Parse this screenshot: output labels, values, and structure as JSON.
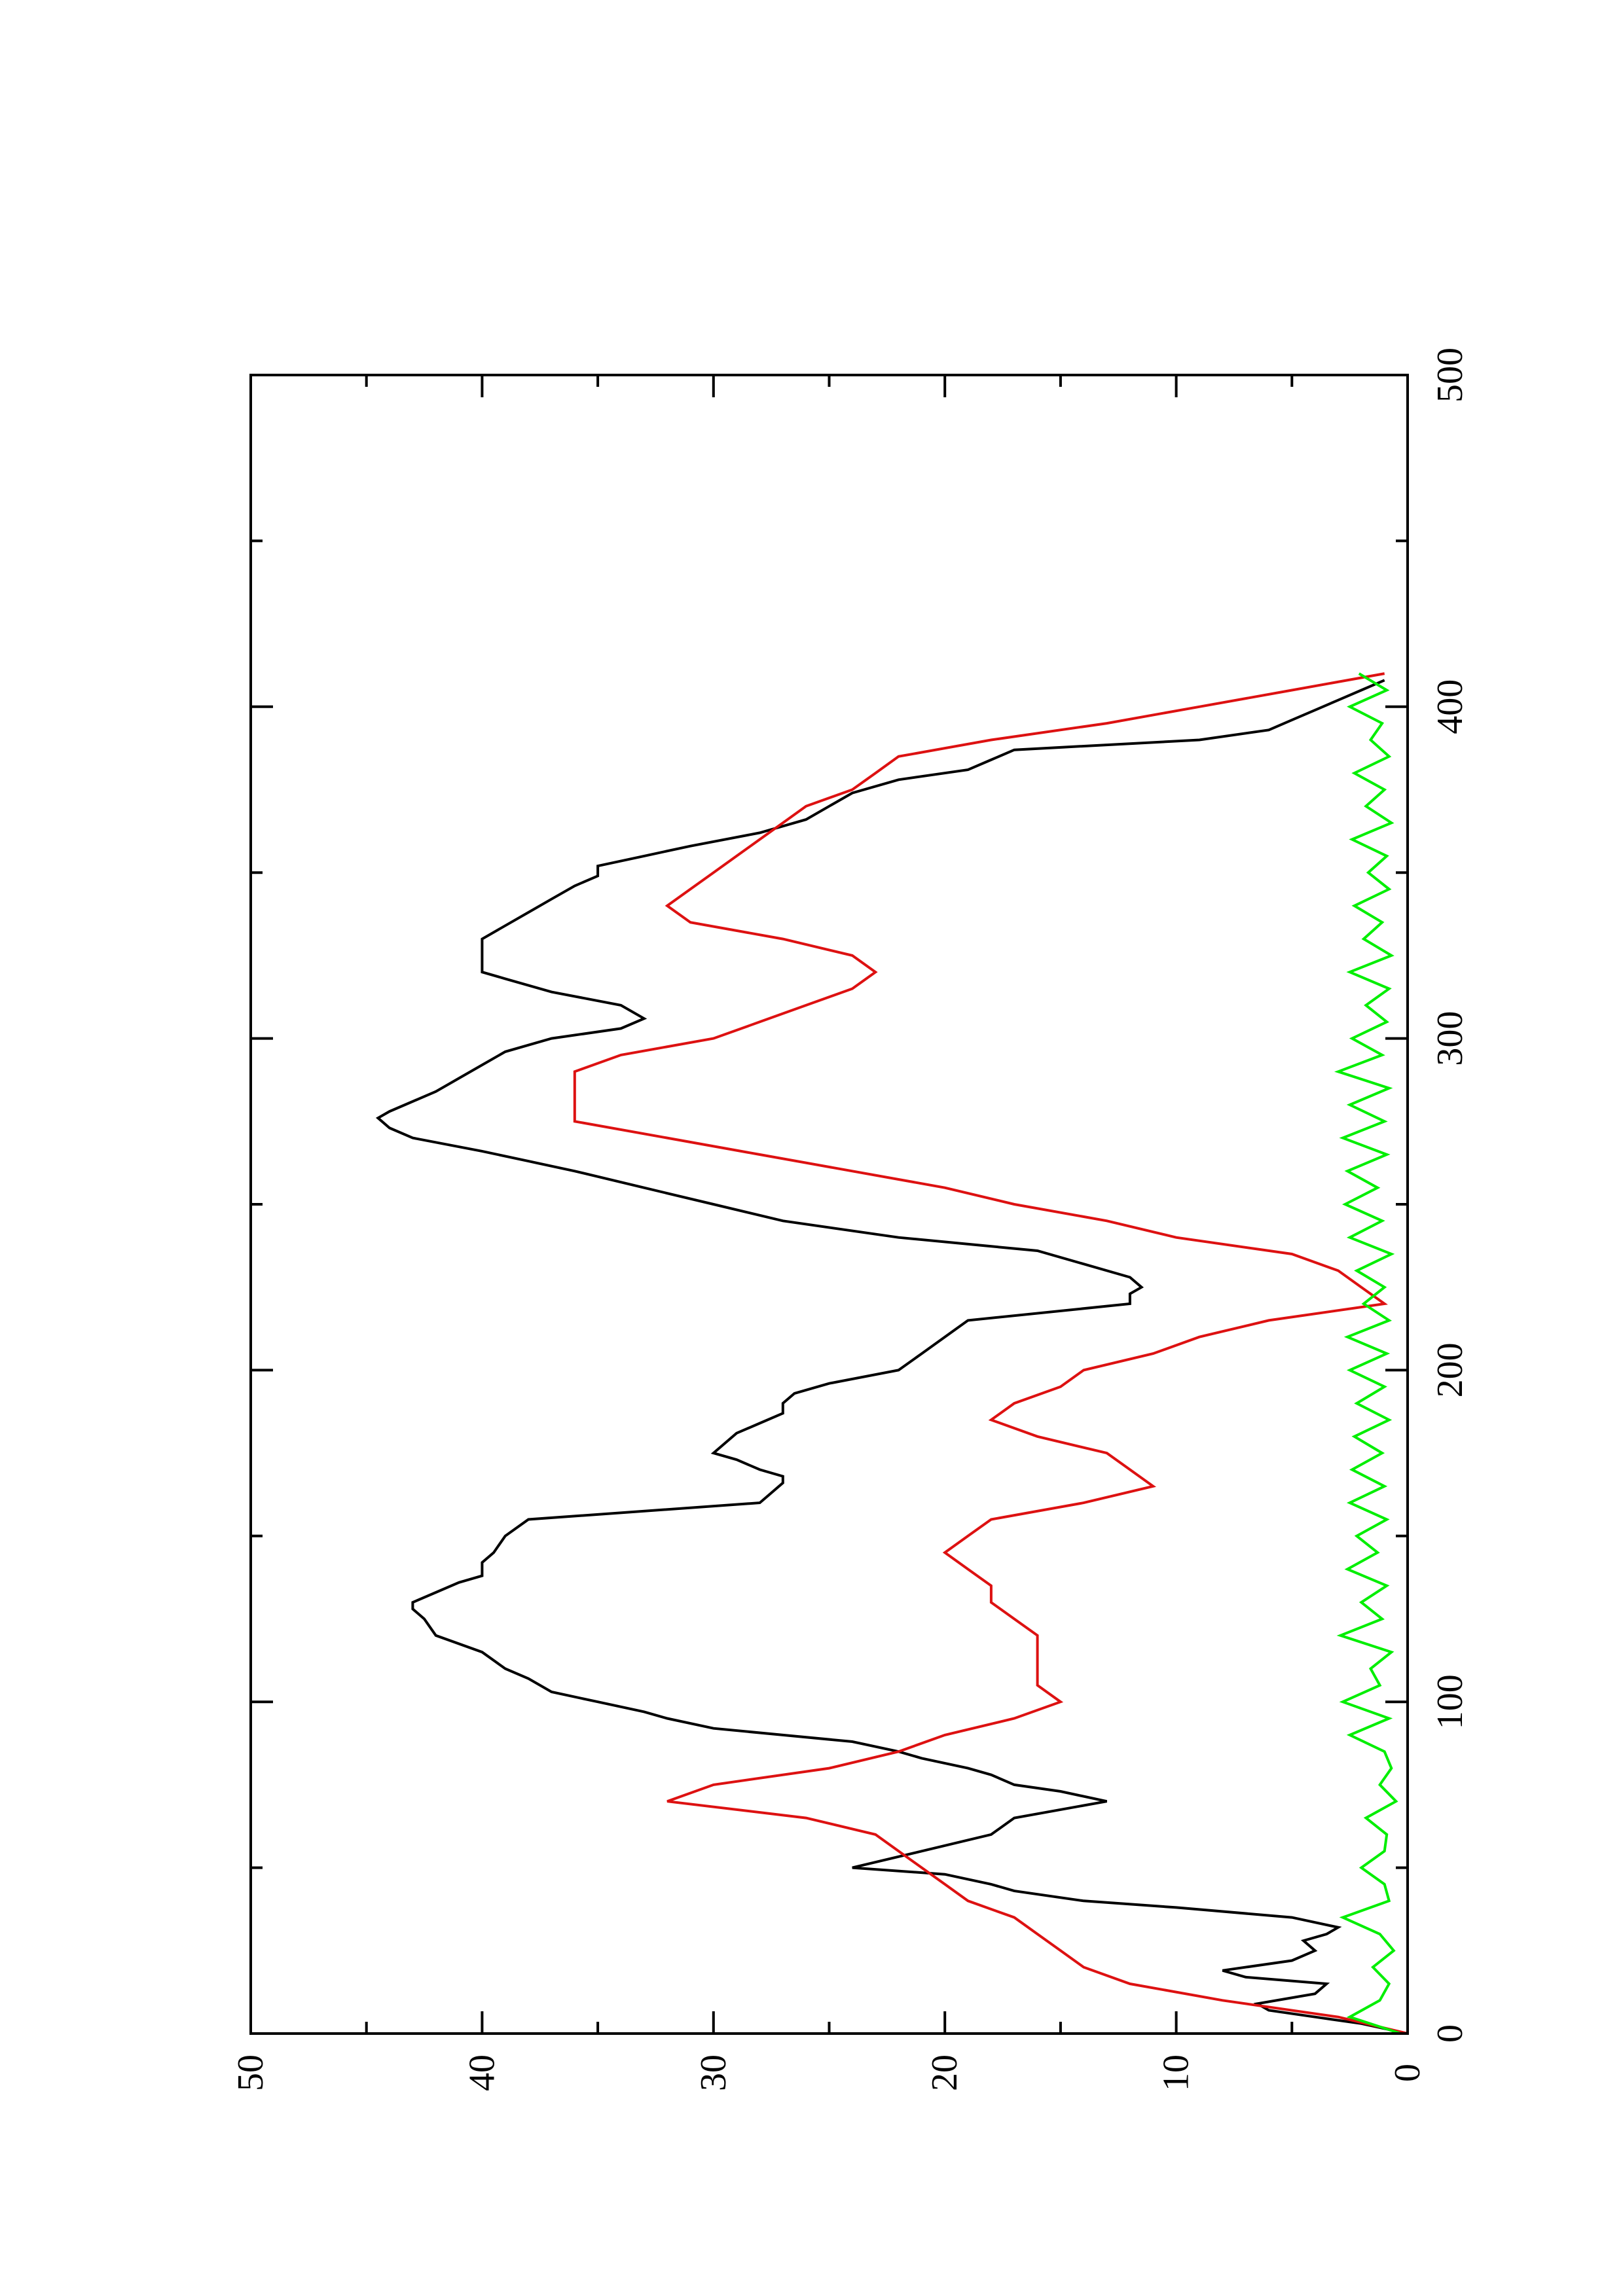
{
  "chart_data": {
    "type": "line",
    "orientation": "rotated-90-ccw",
    "title": "",
    "xlabel": "",
    "ylabel": "",
    "xlim": [
      0,
      500
    ],
    "ylim": [
      0,
      50
    ],
    "x_ticks": [
      0,
      100,
      200,
      300,
      400,
      500
    ],
    "y_ticks": [
      0,
      10,
      20,
      30,
      40,
      50
    ],
    "x_tick_labels": [
      "0",
      "100",
      "200",
      "300",
      "400",
      "500"
    ],
    "y_tick_labels": [
      "0",
      "10",
      "20",
      "30",
      "40",
      "50"
    ],
    "grid": false,
    "legend": "none",
    "series": [
      {
        "color": "#000000",
        "x": [
          0,
          3,
          5,
          7,
          9,
          12,
          15,
          17,
          19,
          22,
          25,
          28,
          30,
          32,
          35,
          38,
          40,
          43,
          45,
          48,
          50,
          55,
          60,
          65,
          70,
          73,
          75,
          78,
          80,
          83,
          85,
          88,
          90,
          92,
          95,
          97,
          100,
          103,
          107,
          110,
          115,
          120,
          125,
          128,
          130,
          133,
          136,
          138,
          142,
          145,
          150,
          155,
          160,
          163,
          166,
          168,
          170,
          173,
          175,
          178,
          181,
          184,
          187,
          190,
          193,
          196,
          200,
          205,
          210,
          215,
          220,
          223,
          225,
          228,
          232,
          236,
          240,
          245,
          250,
          255,
          260,
          263,
          266,
          270,
          273,
          276,
          278,
          281,
          284,
          288,
          292,
          296,
          300,
          303,
          306,
          310,
          314,
          318,
          320,
          323,
          326,
          330,
          334,
          338,
          342,
          346,
          349,
          352,
          355,
          358,
          362,
          366,
          370,
          374,
          378,
          381,
          384,
          387,
          390,
          393,
          396,
          399,
          402,
          405,
          408
        ],
        "y": [
          0,
          2,
          4,
          6,
          6.5,
          4,
          3.5,
          7,
          8,
          5,
          4,
          4.5,
          3.5,
          3,
          5,
          10,
          14,
          17,
          18,
          20,
          24,
          21,
          18,
          17,
          13,
          15,
          17,
          18,
          19,
          21,
          22,
          24,
          27,
          30,
          32,
          33,
          35,
          37,
          38,
          39,
          40,
          42,
          42.5,
          43,
          43,
          42,
          41,
          40,
          40,
          39.5,
          39,
          38,
          28,
          27.5,
          27,
          27,
          28,
          29,
          30,
          29.5,
          29,
          28,
          27,
          27,
          26.5,
          25,
          22,
          21,
          20,
          19,
          12,
          12,
          11.5,
          12,
          14,
          16,
          22,
          27,
          30,
          33,
          36,
          38,
          40,
          43,
          44,
          44.5,
          44,
          43,
          42,
          41,
          40,
          39,
          37,
          34,
          33,
          34,
          37,
          39,
          40,
          40,
          40,
          40,
          39,
          38,
          37,
          36,
          35,
          35,
          33,
          31,
          28,
          26,
          25,
          24,
          22,
          19,
          18,
          17,
          9,
          6,
          5,
          4,
          3,
          2,
          1
        ]
      },
      {
        "color": "#dd1111",
        "x": [
          0,
          5,
          10,
          15,
          20,
          25,
          30,
          35,
          40,
          45,
          50,
          55,
          60,
          65,
          70,
          75,
          80,
          85,
          90,
          95,
          100,
          105,
          110,
          115,
          120,
          125,
          130,
          135,
          140,
          145,
          150,
          155,
          160,
          165,
          170,
          175,
          180,
          185,
          190,
          195,
          200,
          205,
          210,
          215,
          220,
          225,
          230,
          235,
          240,
          245,
          250,
          255,
          260,
          265,
          270,
          275,
          280,
          285,
          290,
          295,
          300,
          305,
          310,
          315,
          320,
          325,
          330,
          335,
          340,
          345,
          350,
          355,
          360,
          365,
          370,
          375,
          380,
          385,
          390,
          395,
          400,
          405,
          410
        ],
        "y": [
          0,
          3,
          8,
          12,
          14,
          15,
          16,
          17,
          19,
          20,
          21,
          22,
          23,
          26,
          32,
          30,
          25,
          22,
          20,
          17,
          15,
          16,
          16,
          16,
          16,
          17,
          18,
          18,
          19,
          20,
          19,
          18,
          14,
          11,
          12,
          13,
          16,
          18,
          17,
          15,
          14,
          11,
          9,
          6,
          1,
          2,
          3,
          5,
          10,
          13,
          17,
          20,
          24,
          28,
          32,
          36,
          36,
          36,
          36,
          34,
          30,
          28,
          26,
          24,
          23,
          24,
          27,
          31,
          32,
          31,
          30,
          29,
          28,
          27,
          26,
          24,
          23,
          22,
          18,
          13,
          9,
          5,
          1
        ]
      },
      {
        "color": "#00ee00",
        "x": [
          0,
          5,
          10,
          15,
          20,
          25,
          30,
          35,
          40,
          45,
          50,
          55,
          60,
          65,
          70,
          75,
          80,
          85,
          90,
          95,
          100,
          105,
          110,
          115,
          120,
          125,
          130,
          135,
          140,
          145,
          150,
          155,
          160,
          165,
          170,
          175,
          180,
          185,
          190,
          195,
          200,
          205,
          210,
          215,
          220,
          225,
          230,
          235,
          240,
          245,
          250,
          255,
          260,
          265,
          270,
          275,
          280,
          285,
          290,
          295,
          300,
          305,
          310,
          315,
          320,
          325,
          330,
          335,
          340,
          345,
          350,
          355,
          360,
          365,
          370,
          375,
          380,
          385,
          390,
          395,
          400,
          405,
          410
        ],
        "y": [
          0.3,
          2.5,
          1.2,
          0.8,
          1.5,
          0.6,
          1.2,
          2.8,
          0.8,
          1.0,
          2.0,
          1.0,
          0.9,
          1.8,
          0.5,
          1.2,
          0.7,
          1.0,
          2.5,
          0.8,
          2.8,
          1.2,
          1.6,
          0.7,
          2.9,
          1.1,
          2.0,
          0.9,
          2.6,
          1.3,
          2.2,
          0.9,
          2.5,
          1.0,
          2.4,
          1.1,
          2.3,
          0.8,
          2.2,
          1.0,
          2.5,
          0.9,
          2.6,
          0.8,
          1.9,
          1.0,
          2.2,
          0.7,
          2.5,
          1.1,
          2.7,
          1.3,
          2.6,
          0.9,
          2.8,
          1.0,
          2.5,
          0.8,
          3.0,
          1.1,
          2.4,
          0.9,
          1.8,
          0.8,
          2.5,
          0.7,
          1.9,
          1.1,
          2.3,
          0.8,
          1.7,
          0.9,
          2.4,
          0.7,
          1.8,
          1.0,
          2.3,
          0.8,
          1.6,
          1.1,
          2.5,
          0.9,
          2.1
        ]
      }
    ]
  }
}
